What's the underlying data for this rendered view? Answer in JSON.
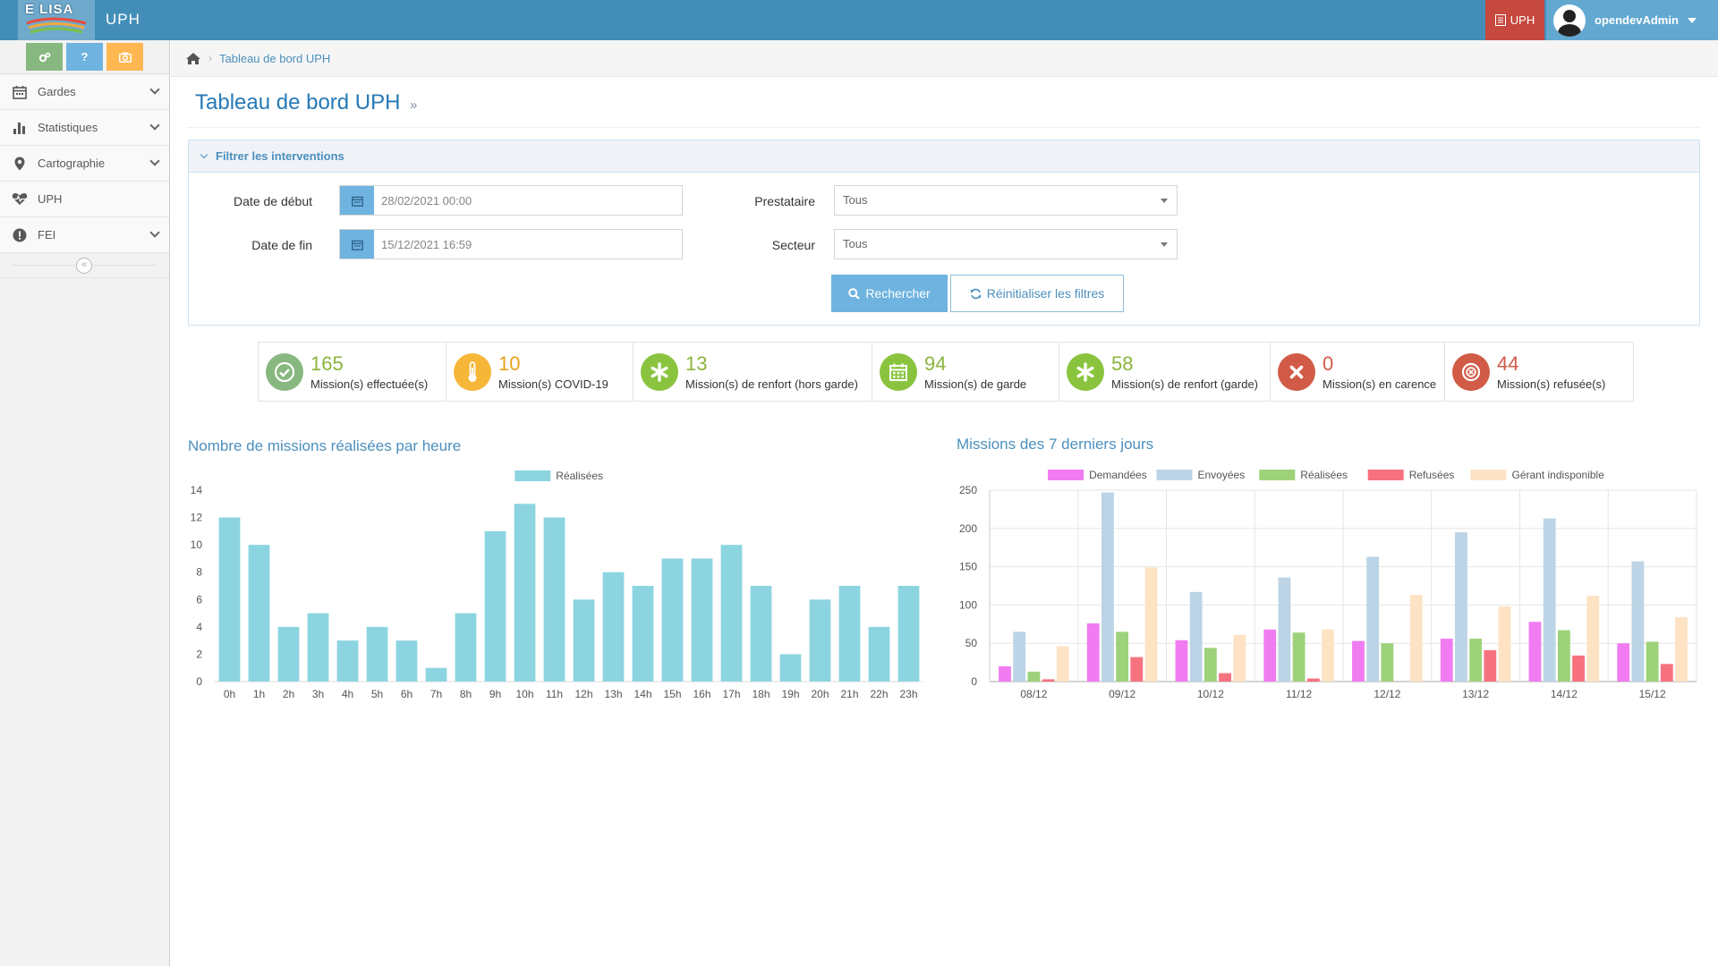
{
  "app": {
    "brand_logo_text": "E LISA",
    "title": "UPH",
    "uph_badge": "UPH",
    "user_name": "opendevAdmin"
  },
  "shortcuts": [
    {
      "icon": "cogs-icon",
      "label": ""
    },
    {
      "icon": "question-icon",
      "label": "?"
    },
    {
      "icon": "camera-icon",
      "label": ""
    }
  ],
  "sidebar": {
    "items": [
      {
        "label": "Gardes",
        "icon": "calendar-icon",
        "has_submenu": true
      },
      {
        "label": "Statistiques",
        "icon": "bar-chart-icon",
        "has_submenu": true
      },
      {
        "label": "Cartographie",
        "icon": "map-marker-icon",
        "has_submenu": true
      },
      {
        "label": "UPH",
        "icon": "heartbeat-icon",
        "has_submenu": false
      },
      {
        "label": "FEI",
        "icon": "exclamation-circle-icon",
        "has_submenu": true
      }
    ],
    "collapse_glyph": "«"
  },
  "breadcrumb": {
    "current": "Tableau de bord UPH"
  },
  "page": {
    "title": "Tableau de bord UPH",
    "arrow": "»"
  },
  "filters": {
    "header": "Filtrer les interventions",
    "date_debut_label": "Date de début",
    "date_debut_value": "28/02/2021 00:00",
    "date_fin_label": "Date de fin",
    "date_fin_value": "15/12/2021 16:59",
    "prestataire_label": "Prestataire",
    "prestataire_value": "Tous",
    "secteur_label": "Secteur",
    "secteur_value": "Tous",
    "search_label": "Rechercher",
    "reset_label": "Réinitialiser les filtres"
  },
  "stats": [
    {
      "value": "165",
      "label": "Mission(s) effectuée(s)",
      "color": "#87b87f",
      "value_color": "#8ab43d",
      "icon": "check-circle-icon"
    },
    {
      "value": "10",
      "label": "Mission(s) COVID-19",
      "color": "#f6b637",
      "value_color": "#e5a21b",
      "icon": "thermometer-icon"
    },
    {
      "value": "13",
      "label": "Mission(s) de renfort (hors garde)",
      "color": "#8ac43f",
      "value_color": "#8ab43d",
      "icon": "asterisk-icon"
    },
    {
      "value": "94",
      "label": "Mission(s) de garde",
      "color": "#8ac43f",
      "value_color": "#8ab43d",
      "icon": "calendar-icon"
    },
    {
      "value": "58",
      "label": "Mission(s) de renfort (garde)",
      "color": "#8ac43f",
      "value_color": "#8ab43d",
      "icon": "asterisk-icon"
    },
    {
      "value": "0",
      "label": "Mission(s) en carence",
      "color": "#d15b47",
      "value_color": "#d15b47",
      "icon": "times-circle-icon"
    },
    {
      "value": "44",
      "label": "Mission(s) refusée(s)",
      "color": "#d15b47",
      "value_color": "#d15b47",
      "icon": "times-circle-o-icon"
    }
  ],
  "chart_data": [
    {
      "type": "bar",
      "title": "Nombre de missions réalisées par heure",
      "categories": [
        "0h",
        "1h",
        "2h",
        "3h",
        "4h",
        "5h",
        "6h",
        "7h",
        "8h",
        "9h",
        "10h",
        "11h",
        "12h",
        "13h",
        "14h",
        "15h",
        "16h",
        "17h",
        "18h",
        "19h",
        "20h",
        "21h",
        "22h",
        "23h"
      ],
      "series": [
        {
          "name": "Réalisées",
          "color": "#8dd4e1",
          "values": [
            12,
            10,
            4,
            5,
            3,
            4,
            3,
            1,
            5,
            11,
            13,
            12,
            6,
            8,
            7,
            9,
            9,
            10,
            7,
            2,
            6,
            7,
            4,
            7
          ]
        }
      ],
      "ylim": [
        0,
        14
      ],
      "yticks": [
        0,
        2,
        4,
        6,
        8,
        10,
        12,
        14
      ],
      "legend": "top-center",
      "grid": false
    },
    {
      "type": "bar",
      "title": "Missions des 7 derniers jours",
      "categories": [
        "08/12",
        "09/12",
        "10/12",
        "11/12",
        "12/12",
        "13/12",
        "14/12",
        "15/12"
      ],
      "series": [
        {
          "name": "Demandées",
          "color": "#f17cf1",
          "values": [
            20,
            76,
            54,
            68,
            53,
            56,
            78,
            50
          ]
        },
        {
          "name": "Envoyées",
          "color": "#bcd4e6",
          "values": [
            65,
            247,
            117,
            136,
            163,
            195,
            213,
            157
          ]
        },
        {
          "name": "Réalisées",
          "color": "#9dd27a",
          "values": [
            13,
            65,
            44,
            64,
            50,
            56,
            67,
            52
          ]
        },
        {
          "name": "Refusées",
          "color": "#f7727f",
          "values": [
            3,
            32,
            11,
            4,
            0,
            41,
            34,
            23
          ]
        },
        {
          "name": "Gérant indisponible",
          "color": "#fde3c4",
          "values": [
            46,
            149,
            61,
            68,
            113,
            98,
            112,
            84
          ]
        }
      ],
      "ylim": [
        0,
        250
      ],
      "yticks": [
        0,
        50,
        100,
        150,
        200,
        250
      ],
      "legend": "top-center",
      "grid": true
    }
  ]
}
